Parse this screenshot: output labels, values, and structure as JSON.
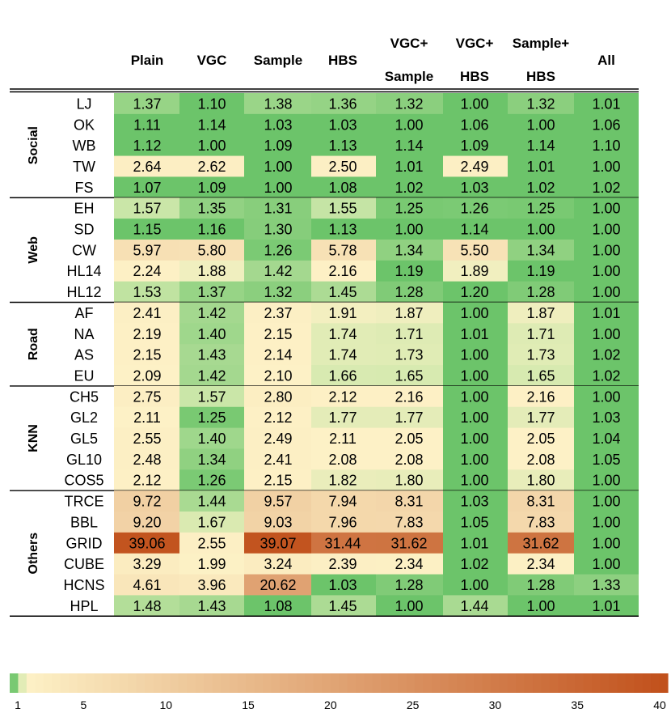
{
  "chart_data": {
    "type": "heatmap",
    "columns": [
      {
        "line1": "",
        "line2": "Plain"
      },
      {
        "line1": "",
        "line2": "VGC"
      },
      {
        "line1": "",
        "line2": "Sample"
      },
      {
        "line1": "",
        "line2": "HBS"
      },
      {
        "line1": "VGC+",
        "line2": "Sample"
      },
      {
        "line1": "VGC+",
        "line2": "HBS"
      },
      {
        "line1": "Sample+",
        "line2": "HBS"
      },
      {
        "line1": "",
        "line2": "All"
      }
    ],
    "groups": [
      {
        "name": "Social",
        "rows": [
          {
            "label": "LJ",
            "values": [
              "1.37",
              "1.10",
              "1.38",
              "1.36",
              "1.32",
              "1.00",
              "1.32",
              "1.01"
            ]
          },
          {
            "label": "OK",
            "values": [
              "1.11",
              "1.14",
              "1.03",
              "1.03",
              "1.00",
              "1.06",
              "1.00",
              "1.06"
            ]
          },
          {
            "label": "WB",
            "values": [
              "1.12",
              "1.00",
              "1.09",
              "1.13",
              "1.14",
              "1.09",
              "1.14",
              "1.10"
            ]
          },
          {
            "label": "TW",
            "values": [
              "2.64",
              "2.62",
              "1.00",
              "2.50",
              "1.01",
              "2.49",
              "1.01",
              "1.00"
            ]
          },
          {
            "label": "FS",
            "values": [
              "1.07",
              "1.09",
              "1.00",
              "1.08",
              "1.02",
              "1.03",
              "1.02",
              "1.02"
            ]
          }
        ]
      },
      {
        "name": "Web",
        "rows": [
          {
            "label": "EH",
            "values": [
              "1.57",
              "1.35",
              "1.31",
              "1.55",
              "1.25",
              "1.26",
              "1.25",
              "1.00"
            ]
          },
          {
            "label": "SD",
            "values": [
              "1.15",
              "1.16",
              "1.30",
              "1.13",
              "1.00",
              "1.14",
              "1.00",
              "1.00"
            ]
          },
          {
            "label": "CW",
            "values": [
              "5.97",
              "5.80",
              "1.26",
              "5.78",
              "1.34",
              "5.50",
              "1.34",
              "1.00"
            ]
          },
          {
            "label": "HL14",
            "values": [
              "2.24",
              "1.88",
              "1.42",
              "2.16",
              "1.19",
              "1.89",
              "1.19",
              "1.00"
            ]
          },
          {
            "label": "HL12",
            "values": [
              "1.53",
              "1.37",
              "1.32",
              "1.45",
              "1.28",
              "1.20",
              "1.28",
              "1.00"
            ]
          }
        ]
      },
      {
        "name": "Road",
        "rows": [
          {
            "label": "AF",
            "values": [
              "2.41",
              "1.42",
              "2.37",
              "1.91",
              "1.87",
              "1.00",
              "1.87",
              "1.01"
            ]
          },
          {
            "label": "NA",
            "values": [
              "2.19",
              "1.40",
              "2.15",
              "1.74",
              "1.71",
              "1.01",
              "1.71",
              "1.00"
            ]
          },
          {
            "label": "AS",
            "values": [
              "2.15",
              "1.43",
              "2.14",
              "1.74",
              "1.73",
              "1.00",
              "1.73",
              "1.02"
            ]
          },
          {
            "label": "EU",
            "values": [
              "2.09",
              "1.42",
              "2.10",
              "1.66",
              "1.65",
              "1.00",
              "1.65",
              "1.02"
            ]
          }
        ]
      },
      {
        "name": "KNN",
        "rows": [
          {
            "label": "CH5",
            "values": [
              "2.75",
              "1.57",
              "2.80",
              "2.12",
              "2.16",
              "1.00",
              "2.16",
              "1.00"
            ]
          },
          {
            "label": "GL2",
            "values": [
              "2.11",
              "1.25",
              "2.12",
              "1.77",
              "1.77",
              "1.00",
              "1.77",
              "1.03"
            ]
          },
          {
            "label": "GL5",
            "values": [
              "2.55",
              "1.40",
              "2.49",
              "2.11",
              "2.05",
              "1.00",
              "2.05",
              "1.04"
            ]
          },
          {
            "label": "GL10",
            "values": [
              "2.48",
              "1.34",
              "2.41",
              "2.08",
              "2.08",
              "1.00",
              "2.08",
              "1.05"
            ]
          },
          {
            "label": "COS5",
            "values": [
              "2.12",
              "1.26",
              "2.15",
              "1.82",
              "1.80",
              "1.00",
              "1.80",
              "1.00"
            ]
          }
        ]
      },
      {
        "name": "Others",
        "rows": [
          {
            "label": "TRCE",
            "values": [
              "9.72",
              "1.44",
              "9.57",
              "7.94",
              "8.31",
              "1.03",
              "8.31",
              "1.00"
            ]
          },
          {
            "label": "BBL",
            "values": [
              "9.20",
              "1.67",
              "9.03",
              "7.96",
              "7.83",
              "1.05",
              "7.83",
              "1.00"
            ]
          },
          {
            "label": "GRID",
            "values": [
              "39.06",
              "2.55",
              "39.07",
              "31.44",
              "31.62",
              "1.01",
              "31.62",
              "1.00"
            ]
          },
          {
            "label": "CUBE",
            "values": [
              "3.29",
              "1.99",
              "3.24",
              "2.39",
              "2.34",
              "1.02",
              "2.34",
              "1.00"
            ]
          },
          {
            "label": "HCNS",
            "values": [
              "4.61",
              "3.96",
              "20.62",
              "1.03",
              "1.28",
              "1.00",
              "1.28",
              "1.33"
            ]
          },
          {
            "label": "HPL",
            "values": [
              "1.48",
              "1.43",
              "1.08",
              "1.45",
              "1.00",
              "1.44",
              "1.00",
              "1.01"
            ]
          }
        ]
      }
    ],
    "colorbar": {
      "min": 1,
      "max": 40,
      "ticks": [
        "1",
        "5",
        "10",
        "15",
        "20",
        "25",
        "30",
        "35",
        "40"
      ]
    },
    "colors": {
      "low_green": "#6cc46a",
      "light_green": "#d2e9ad",
      "cream": "#fdf1c6",
      "high_orange": "#c1501b"
    }
  }
}
